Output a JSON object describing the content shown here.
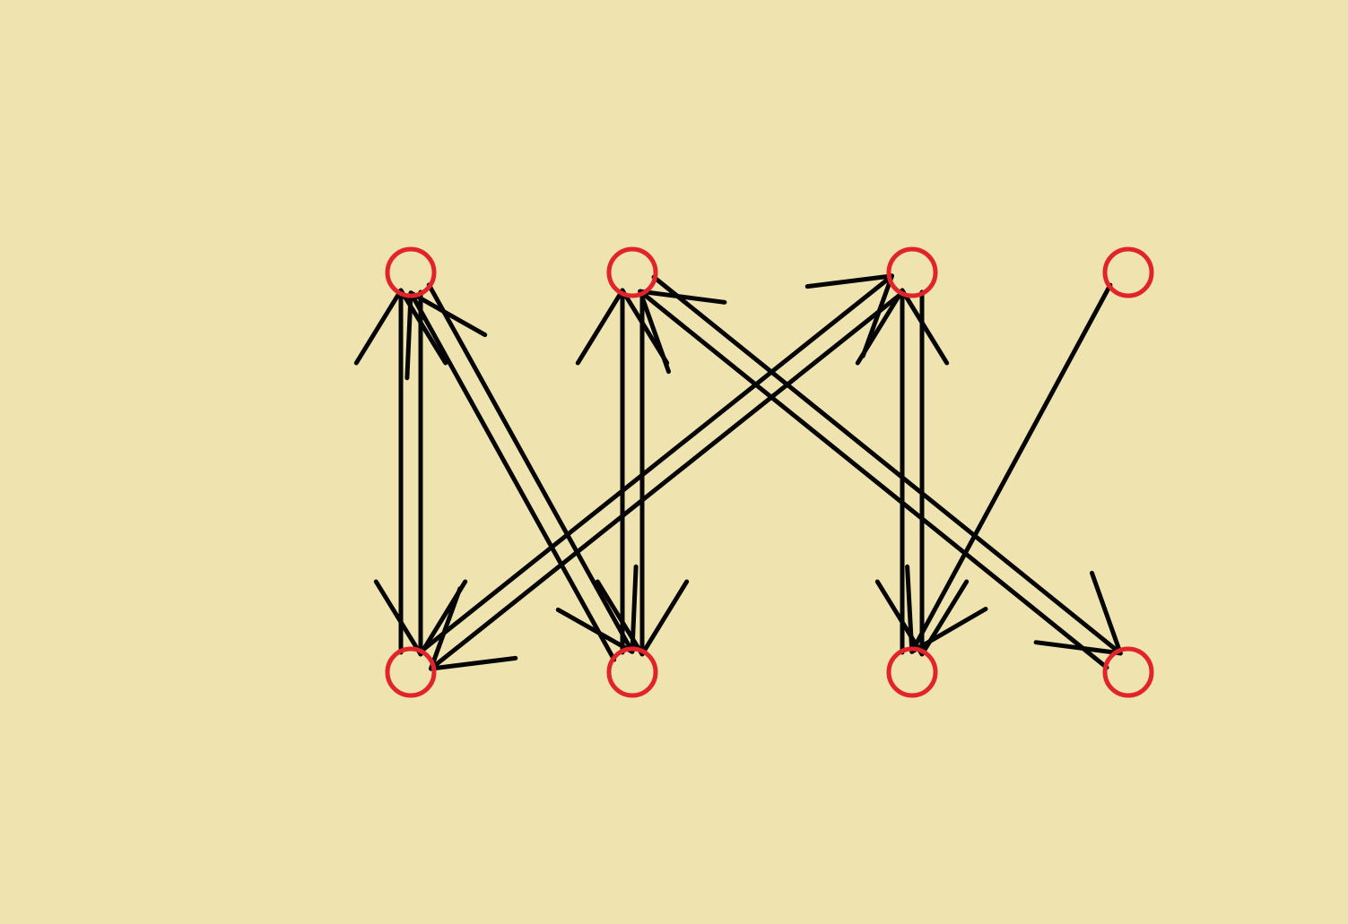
{
  "colors": {
    "background": "#efe3b0",
    "node": "#e0242a",
    "edge": "#050505"
  },
  "diagram": {
    "type": "directed-graph",
    "nodes": [
      {
        "id": "T1",
        "row": "top",
        "col": 1
      },
      {
        "id": "T2",
        "row": "top",
        "col": 2
      },
      {
        "id": "T3",
        "row": "top",
        "col": 3
      },
      {
        "id": "T4",
        "row": "top",
        "col": 4
      },
      {
        "id": "B1",
        "row": "bottom",
        "col": 1
      },
      {
        "id": "B2",
        "row": "bottom",
        "col": 2
      },
      {
        "id": "B3",
        "row": "bottom",
        "col": 3
      },
      {
        "id": "B4",
        "row": "bottom",
        "col": 4
      }
    ],
    "edges": [
      {
        "from": "B1",
        "to": "T1"
      },
      {
        "from": "T1",
        "to": "B1"
      },
      {
        "from": "B2",
        "to": "T1"
      },
      {
        "from": "T1",
        "to": "B2"
      },
      {
        "from": "B2",
        "to": "T2"
      },
      {
        "from": "T2",
        "to": "B2"
      },
      {
        "from": "B1",
        "to": "T3"
      },
      {
        "from": "T3",
        "to": "B1"
      },
      {
        "from": "B4",
        "to": "T2"
      },
      {
        "from": "T2",
        "to": "B4"
      },
      {
        "from": "B3",
        "to": "T3"
      },
      {
        "from": "T3",
        "to": "B3"
      },
      {
        "from": "T4",
        "to": "B3"
      }
    ]
  }
}
